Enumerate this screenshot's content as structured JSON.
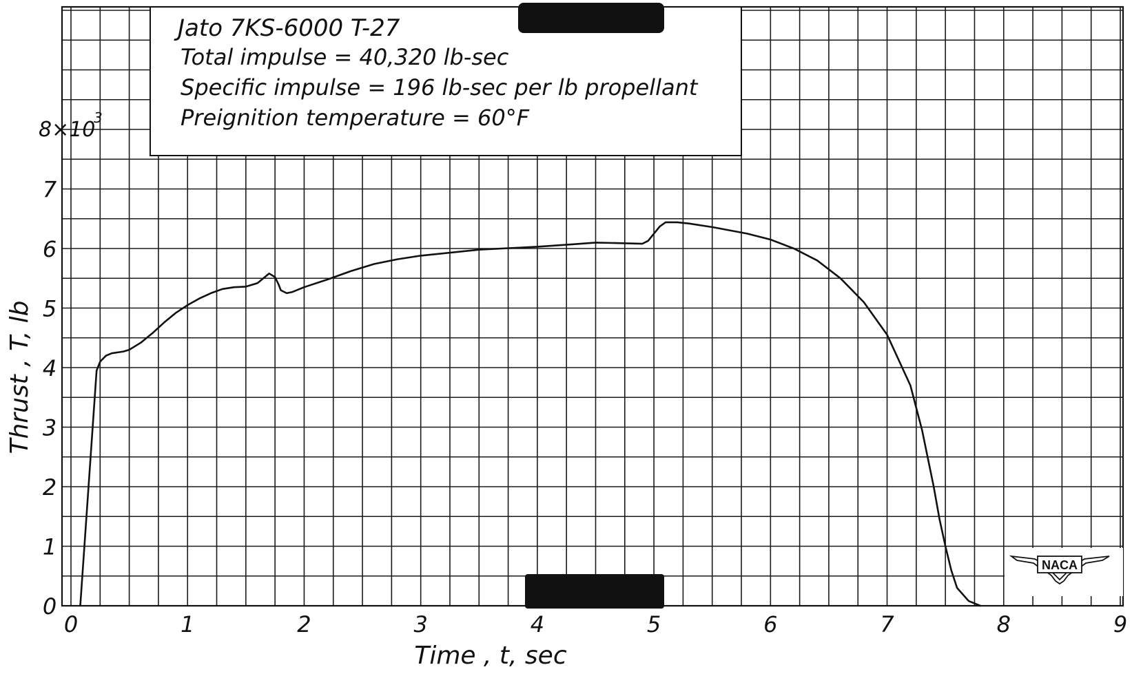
{
  "chart_data": {
    "type": "line",
    "title_block": {
      "line1": "Jato 7KS-6000 T-27",
      "line2": "Total impulse = 40,320 lb-sec",
      "line3": "Specific impulse = 196 lb-sec per lb propellant",
      "line4": "Preignition temperature = 60°F"
    },
    "xlabel": "Time , t, sec",
    "ylabel": "Thrust , T, lb",
    "y_multiplier_label": "8×10",
    "y_multiplier_exp": "3",
    "xlim": [
      0,
      9
    ],
    "ylim": [
      0,
      10
    ],
    "x_ticks": [
      "0",
      "1",
      "2",
      "3",
      "4",
      "5",
      "6",
      "7",
      "8",
      "9"
    ],
    "y_ticks": [
      "0",
      "1",
      "2",
      "3",
      "4",
      "5",
      "6",
      "7"
    ],
    "grid": true,
    "logo": "NACA",
    "series": [
      {
        "x": [
          0.08,
          0.22,
          0.25,
          0.3,
          0.35,
          0.45,
          0.5,
          0.6,
          0.7,
          0.8,
          0.9,
          1.0,
          1.1,
          1.2,
          1.3,
          1.4,
          1.5,
          1.6,
          1.65,
          1.7,
          1.75,
          1.78,
          1.8,
          1.85,
          1.9,
          2.0,
          2.2,
          2.4,
          2.6,
          2.8,
          3.0,
          3.5,
          4.0,
          4.3,
          4.5,
          4.7,
          4.9,
          4.95,
          5.0,
          5.05,
          5.1,
          5.2,
          5.3,
          5.5,
          5.8,
          6.0,
          6.2,
          6.4,
          6.6,
          6.8,
          7.0,
          7.2,
          7.3,
          7.4,
          7.45,
          7.5,
          7.55,
          7.6,
          7.7,
          7.8
        ],
        "y": [
          0,
          3.95,
          4.1,
          4.2,
          4.24,
          4.27,
          4.3,
          4.42,
          4.58,
          4.76,
          4.92,
          5.05,
          5.16,
          5.25,
          5.32,
          5.35,
          5.36,
          5.42,
          5.5,
          5.58,
          5.52,
          5.4,
          5.3,
          5.25,
          5.27,
          5.35,
          5.48,
          5.62,
          5.74,
          5.82,
          5.88,
          5.98,
          6.03,
          6.07,
          6.1,
          6.09,
          6.08,
          6.13,
          6.25,
          6.37,
          6.44,
          6.44,
          6.42,
          6.36,
          6.25,
          6.15,
          6.0,
          5.8,
          5.5,
          5.1,
          4.55,
          3.7,
          2.95,
          2.0,
          1.45,
          1.0,
          0.6,
          0.3,
          0.08,
          0
        ]
      }
    ]
  }
}
